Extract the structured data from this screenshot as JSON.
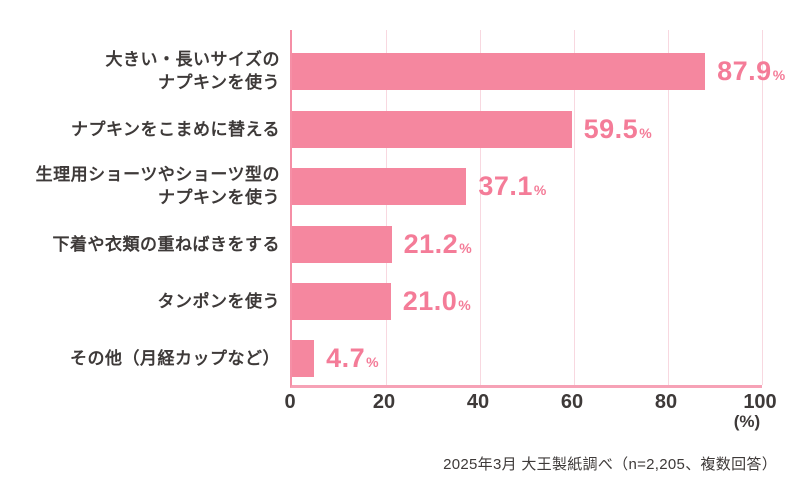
{
  "chart_data": {
    "type": "bar",
    "orientation": "horizontal",
    "title": "",
    "xlabel": "(%)",
    "xlim": [
      0,
      100
    ],
    "x_ticks": [
      "0",
      "20",
      "40",
      "60",
      "80",
      "100"
    ],
    "grid": true,
    "legend": false,
    "unit": "%",
    "categories": [
      "大きい・長いサイズの\nナプキンを使う",
      "ナプキンをこまめに替える",
      "生理用ショーツやショーツ型の\nナプキンを使う",
      "下着や衣類の重ねばきをする",
      "タンポンを使う",
      "その他（月経カップなど）"
    ],
    "values": [
      87.9,
      59.5,
      37.1,
      21.2,
      21.0,
      4.7
    ],
    "rows": [
      {
        "label": "大きい・長いサイズの\nナプキンを使う",
        "value": 87.9,
        "display": "87.9"
      },
      {
        "label": "ナプキンをこまめに替える",
        "value": 59.5,
        "display": "59.5"
      },
      {
        "label": "生理用ショーツやショーツ型の\nナプキンを使う",
        "value": 37.1,
        "display": "37.1"
      },
      {
        "label": "下着や衣類の重ねばきをする",
        "value": 21.2,
        "display": "21.2"
      },
      {
        "label": "タンポンを使う",
        "value": 21.0,
        "display": "21.0"
      },
      {
        "label": "その他（月経カップなど）",
        "value": 4.7,
        "display": "4.7"
      }
    ],
    "colors": {
      "bar": "#f5879f",
      "value_text": "#f47c98",
      "gridline": "#f8d8e0",
      "axis": "#f6a2b6",
      "text": "#3e3a39"
    },
    "source_note": "2025年3月 大王製紙調べ（n=2,205、複数回答）"
  }
}
